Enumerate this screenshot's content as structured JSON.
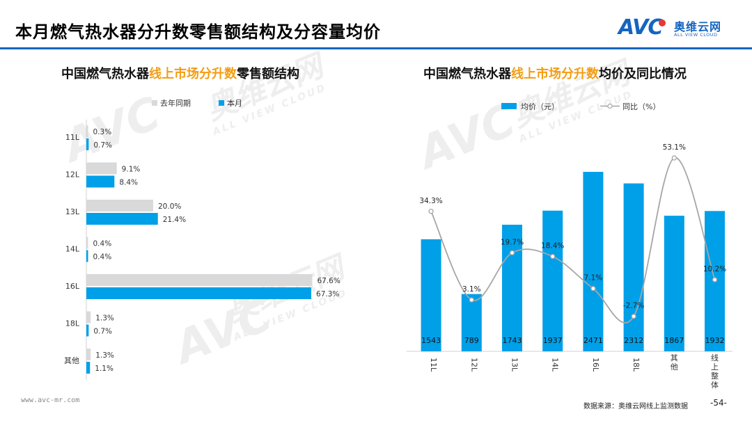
{
  "header": {
    "title": "本月燃气热水器分升数零售额结构及分容量均价",
    "logo_text": "AVC",
    "logo_cn": "奥维云网",
    "logo_en": "ALL VIEW CLOUD"
  },
  "watermark": {
    "big": "AVC",
    "cn": "奥维云网",
    "en": "ALL VIEW CLOUD"
  },
  "left_chart": {
    "title_prefix": "中国燃气热水器",
    "title_highlight": "线上市场分升数",
    "title_suffix": "零售额结构"
  },
  "right_chart": {
    "title_prefix": "中国燃气热水器",
    "title_highlight": "线上市场分升数",
    "title_suffix": "均价及同比情况"
  },
  "chart_data": [
    {
      "type": "bar",
      "orientation": "horizontal",
      "categories": [
        "11L",
        "12L",
        "13L",
        "14L",
        "16L",
        "18L",
        "其他"
      ],
      "series": [
        {
          "name": "去年同期",
          "values": [
            0.3,
            9.1,
            20.0,
            0.4,
            67.6,
            1.3,
            1.3
          ],
          "labels": [
            "0.3%",
            "9.1%",
            "20.0%",
            "0.4%",
            "67.6%",
            "1.3%",
            "1.3%"
          ],
          "color": "#d9d9d9"
        },
        {
          "name": "本月",
          "values": [
            0.7,
            8.4,
            21.4,
            0.4,
            67.3,
            0.7,
            1.1
          ],
          "labels": [
            "0.7%",
            "8.4%",
            "21.4%",
            "0.4%",
            "67.3%",
            "0.7%",
            "1.1%"
          ],
          "color": "#00a0e9"
        }
      ],
      "unit": "%",
      "legend_position": "top-left"
    },
    {
      "type": "bar",
      "categories": [
        "11L",
        "12L",
        "13L",
        "14L",
        "16L",
        "18L",
        "其他",
        "线上整体"
      ],
      "series": [
        {
          "name": "均价（元）",
          "type": "bar",
          "values": [
            1543,
            789,
            1743,
            1937,
            2471,
            2312,
            1867,
            1932
          ],
          "labels": [
            "1543",
            "789",
            "1743",
            "1937",
            "2471",
            "2312",
            "1867",
            "1932"
          ],
          "color": "#00a0e9"
        },
        {
          "name": "同比（%）",
          "type": "line",
          "values": [
            34.3,
            3.1,
            19.7,
            18.4,
            7.1,
            -2.7,
            53.1,
            10.2
          ],
          "labels": [
            "34.3%",
            "3.1%",
            "19.7%",
            "18.4%",
            "7.1%",
            "-2.7%",
            "53.1%",
            "10.2%"
          ],
          "color": "#a6a6a6"
        }
      ],
      "legend_position": "top-left"
    }
  ],
  "footer": {
    "url": "www.avc-mr.com",
    "source": "数据来源：奥维云网线上监测数据",
    "page": "-54-"
  }
}
